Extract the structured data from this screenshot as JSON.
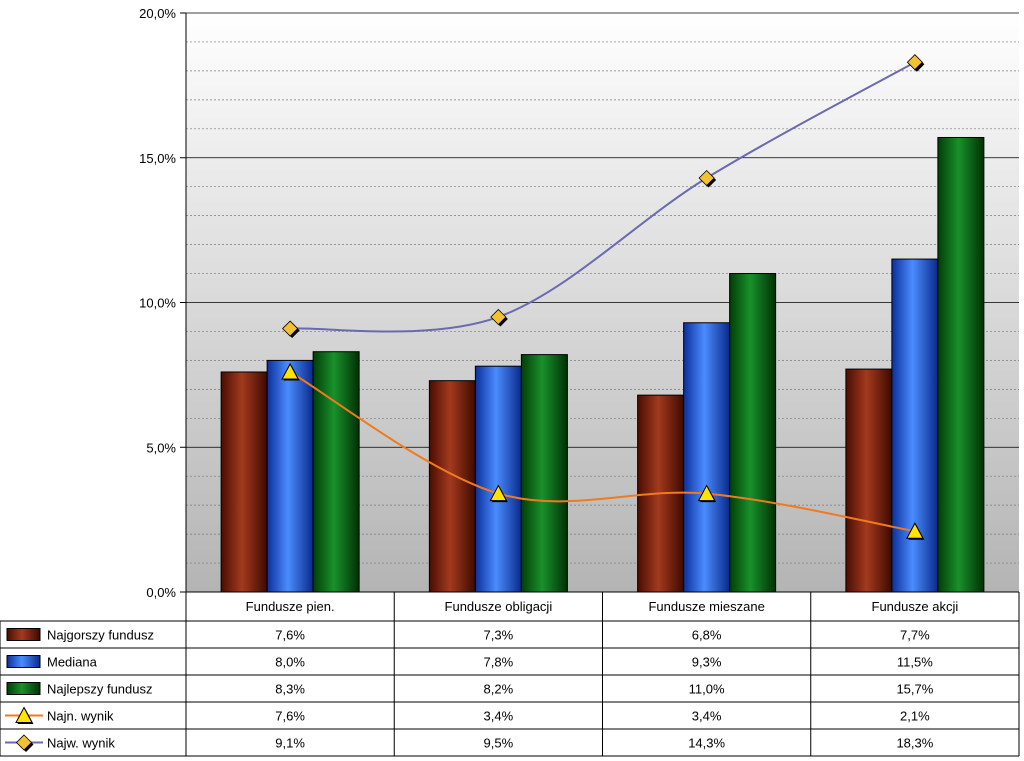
{
  "chart_data": {
    "type": "bar",
    "title": "",
    "xlabel": "",
    "ylabel": "",
    "ylim": [
      0,
      20
    ],
    "y_ticks": [
      "0,0%",
      "5,0%",
      "10,0%",
      "15,0%",
      "20,0%"
    ],
    "categories": [
      "Fundusze pien.",
      "Fundusze obligacji",
      "Fundusze mieszane",
      "Fundusze akcji"
    ],
    "series": [
      {
        "name": "Najgorszy fundusz",
        "kind": "bar",
        "color": "#7A1A08",
        "values": [
          7.6,
          7.3,
          6.8,
          7.7
        ],
        "labels": [
          "7,6%",
          "7,3%",
          "6,8%",
          "7,7%"
        ]
      },
      {
        "name": "Mediana",
        "kind": "bar",
        "color": "#1F5FE0",
        "values": [
          8.0,
          7.8,
          9.3,
          11.5
        ],
        "labels": [
          "8,0%",
          "7,8%",
          "9,3%",
          "11,5%"
        ]
      },
      {
        "name": "Najlepszy fundusz",
        "kind": "bar",
        "color": "#0A6A12",
        "values": [
          8.3,
          8.2,
          11.0,
          15.7
        ],
        "labels": [
          "8,3%",
          "8,2%",
          "11,0%",
          "15,7%"
        ]
      },
      {
        "name": "Najn. wynik",
        "kind": "line",
        "color": "#F07A20",
        "marker": "triangle",
        "values": [
          7.6,
          3.4,
          3.4,
          2.1
        ],
        "labels": [
          "7,6%",
          "3,4%",
          "3,4%",
          "2,1%"
        ]
      },
      {
        "name": "Najw. wynik",
        "kind": "line",
        "color": "#6A6AB0",
        "marker": "diamond",
        "values": [
          9.1,
          9.5,
          14.3,
          18.3
        ],
        "labels": [
          "9,1%",
          "9,5%",
          "14,3%",
          "18,3%"
        ]
      }
    ],
    "grid": true,
    "legend": "data-table"
  }
}
